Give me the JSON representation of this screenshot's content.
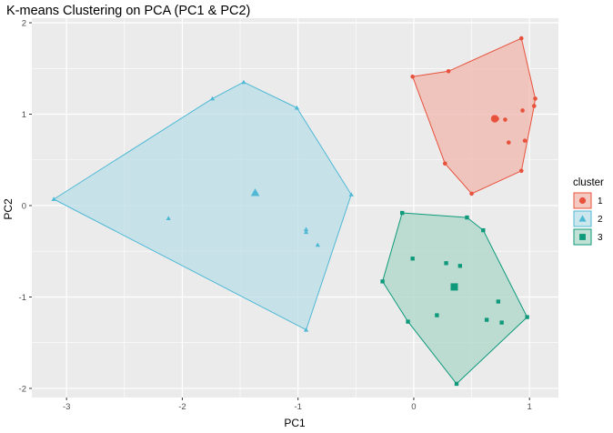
{
  "chart_data": {
    "type": "scatter",
    "title": "K-means Clustering on PCA (PC1 & PC2)",
    "xlabel": "PC1",
    "ylabel": "PC2",
    "xlim": [
      -3.3,
      1.25
    ],
    "ylim": [
      -2.1,
      2.05
    ],
    "xticks": [
      -3,
      -2,
      -1,
      0,
      1
    ],
    "yticks": [
      -2,
      -1,
      0,
      1,
      2
    ],
    "grid": true,
    "legend_title": "cluster",
    "legend_position": "right",
    "series": [
      {
        "name": "1",
        "color": "#E8523C",
        "fill": "#F0B4AA",
        "shape": "circle",
        "points": [
          [
            0.93,
            1.83
          ],
          [
            0.3,
            1.47
          ],
          [
            -0.01,
            1.41
          ],
          [
            1.05,
            1.17
          ],
          [
            1.04,
            1.09
          ],
          [
            0.94,
            1.04
          ],
          [
            0.79,
            0.94
          ],
          [
            0.72,
            0.95
          ],
          [
            0.96,
            0.71
          ],
          [
            0.82,
            0.69
          ],
          [
            0.27,
            0.46
          ],
          [
            0.93,
            0.38
          ],
          [
            0.5,
            0.13
          ]
        ],
        "hull": [
          [
            0.93,
            1.83
          ],
          [
            1.05,
            1.17
          ],
          [
            1.04,
            1.09
          ],
          [
            0.93,
            0.38
          ],
          [
            0.5,
            0.13
          ],
          [
            0.27,
            0.46
          ],
          [
            -0.01,
            1.41
          ],
          [
            0.3,
            1.47
          ]
        ],
        "centroid": [
          0.7,
          0.95
        ]
      },
      {
        "name": "2",
        "color": "#4FB9D5",
        "fill": "#B8DCE6",
        "shape": "triangle",
        "points": [
          [
            -1.47,
            1.35
          ],
          [
            -1.74,
            1.17
          ],
          [
            -1.01,
            1.07
          ],
          [
            -3.11,
            0.07
          ],
          [
            -0.54,
            0.12
          ],
          [
            -2.12,
            -0.14
          ],
          [
            -0.93,
            -0.26
          ],
          [
            -0.93,
            -0.29
          ],
          [
            -0.83,
            -0.43
          ],
          [
            -0.93,
            -1.36
          ]
        ],
        "hull": [
          [
            -1.47,
            1.35
          ],
          [
            -1.01,
            1.07
          ],
          [
            -0.54,
            0.12
          ],
          [
            -0.93,
            -1.36
          ],
          [
            -3.11,
            0.07
          ],
          [
            -1.74,
            1.17
          ]
        ],
        "centroid": [
          -1.37,
          0.14
        ]
      },
      {
        "name": "3",
        "color": "#0E9A7A",
        "fill": "#A9D6C8",
        "shape": "square",
        "points": [
          [
            -0.1,
            -0.08
          ],
          [
            0.46,
            -0.13
          ],
          [
            0.6,
            -0.27
          ],
          [
            -0.01,
            -0.58
          ],
          [
            0.28,
            -0.63
          ],
          [
            0.4,
            -0.66
          ],
          [
            -0.27,
            -0.83
          ],
          [
            0.73,
            -1.05
          ],
          [
            0.2,
            -1.2
          ],
          [
            0.98,
            -1.22
          ],
          [
            0.63,
            -1.25
          ],
          [
            0.76,
            -1.28
          ],
          [
            -0.05,
            -1.27
          ],
          [
            0.37,
            -1.95
          ]
        ],
        "hull": [
          [
            -0.1,
            -0.08
          ],
          [
            0.46,
            -0.13
          ],
          [
            0.6,
            -0.27
          ],
          [
            0.98,
            -1.22
          ],
          [
            0.37,
            -1.95
          ],
          [
            -0.05,
            -1.27
          ],
          [
            -0.27,
            -0.83
          ]
        ],
        "centroid": [
          0.35,
          -0.89
        ]
      }
    ]
  }
}
